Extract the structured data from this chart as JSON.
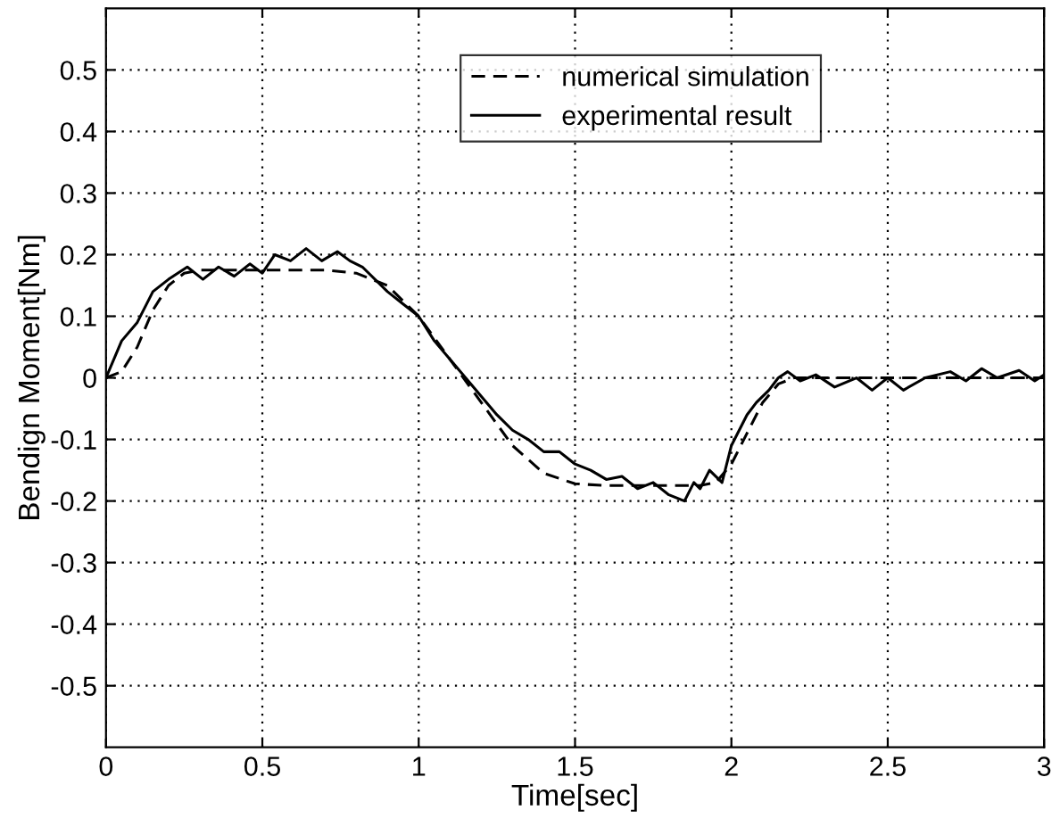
{
  "chart_data": {
    "type": "line",
    "xlabel": "Time[sec]",
    "ylabel": "Bendign Moment[Nm]",
    "xlim": [
      0,
      3
    ],
    "ylim": [
      -0.6,
      0.6
    ],
    "xticks": [
      0,
      0.5,
      1,
      1.5,
      2,
      2.5,
      3
    ],
    "yticks": [
      -0.5,
      -0.4,
      -0.3,
      -0.2,
      -0.1,
      0,
      0.1,
      0.2,
      0.3,
      0.4,
      0.5
    ],
    "grid": true,
    "legend": "top center",
    "series": [
      {
        "name": "numerical simulation",
        "color": "#000000",
        "line_style": "dashed",
        "x": [
          0,
          0.05,
          0.1,
          0.15,
          0.2,
          0.25,
          0.3,
          0.5,
          0.7,
          0.8,
          0.9,
          1.0,
          1.1,
          1.2,
          1.3,
          1.4,
          1.5,
          1.6,
          1.9,
          1.95,
          2.0,
          2.05,
          2.1,
          2.15,
          2.2,
          3.0
        ],
        "values": [
          0,
          0.01,
          0.05,
          0.11,
          0.15,
          0.17,
          0.175,
          0.175,
          0.175,
          0.17,
          0.15,
          0.1,
          0.03,
          -0.04,
          -0.11,
          -0.155,
          -0.172,
          -0.175,
          -0.175,
          -0.17,
          -0.14,
          -0.09,
          -0.04,
          -0.01,
          0,
          0
        ]
      },
      {
        "name": "experimental result",
        "color": "#000000",
        "line_style": "solid",
        "x": [
          0,
          0.05,
          0.1,
          0.15,
          0.2,
          0.26,
          0.31,
          0.36,
          0.41,
          0.46,
          0.5,
          0.54,
          0.59,
          0.64,
          0.69,
          0.74,
          0.78,
          0.82,
          0.9,
          0.95,
          1.0,
          1.05,
          1.1,
          1.15,
          1.2,
          1.25,
          1.3,
          1.35,
          1.4,
          1.45,
          1.5,
          1.55,
          1.6,
          1.65,
          1.7,
          1.75,
          1.8,
          1.85,
          1.88,
          1.9,
          1.93,
          1.97,
          2.0,
          2.05,
          2.08,
          2.12,
          2.15,
          2.18,
          2.22,
          2.27,
          2.33,
          2.4,
          2.45,
          2.5,
          2.55,
          2.62,
          2.7,
          2.75,
          2.8,
          2.85,
          2.92,
          2.97,
          3.0
        ],
        "values": [
          0,
          0.06,
          0.09,
          0.14,
          0.16,
          0.18,
          0.16,
          0.18,
          0.165,
          0.185,
          0.17,
          0.2,
          0.19,
          0.21,
          0.19,
          0.205,
          0.19,
          0.18,
          0.14,
          0.12,
          0.1,
          0.06,
          0.03,
          0.0,
          -0.03,
          -0.06,
          -0.085,
          -0.1,
          -0.12,
          -0.12,
          -0.14,
          -0.15,
          -0.165,
          -0.16,
          -0.18,
          -0.17,
          -0.19,
          -0.2,
          -0.17,
          -0.18,
          -0.15,
          -0.17,
          -0.11,
          -0.06,
          -0.04,
          -0.02,
          0.0,
          0.01,
          -0.005,
          0.005,
          -0.015,
          0.0,
          -0.02,
          0.0,
          -0.02,
          0.0,
          0.01,
          -0.005,
          0.015,
          0.0,
          0.012,
          -0.005,
          0.005
        ]
      }
    ]
  }
}
